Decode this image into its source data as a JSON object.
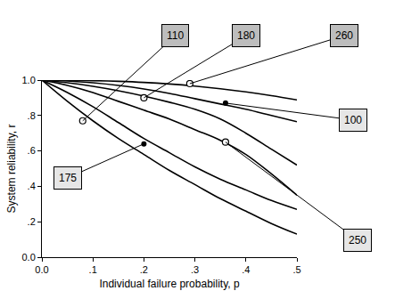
{
  "chart_data": {
    "type": "line",
    "x_label": "Individual failure probability, p",
    "y_label": "System reliability, r",
    "x": [
      0,
      0.05,
      0.1,
      0.15,
      0.2,
      0.25,
      0.3,
      0.35,
      0.4,
      0.45,
      0.5
    ],
    "series": [
      {
        "color": "#000000",
        "values": [
          1,
          0.999,
          0.997,
          0.993,
          0.987,
          0.978,
          0.966,
          0.951,
          0.933,
          0.912,
          0.888
        ]
      },
      {
        "color": "#000000",
        "values": [
          1,
          0.995,
          0.985,
          0.97,
          0.95,
          0.925,
          0.895,
          0.865,
          0.835,
          0.8,
          0.765
        ]
      },
      {
        "color": "#000000",
        "values": [
          1,
          0.985,
          0.965,
          0.94,
          0.91,
          0.875,
          0.835,
          0.78,
          0.7,
          0.61,
          0.52
        ]
      },
      {
        "color": "#000000",
        "values": [
          1,
          0.97,
          0.93,
          0.88,
          0.83,
          0.78,
          0.72,
          0.66,
          0.58,
          0.47,
          0.35
        ]
      },
      {
        "color": "#000000",
        "values": [
          1,
          0.93,
          0.85,
          0.76,
          0.67,
          0.59,
          0.51,
          0.44,
          0.38,
          0.32,
          0.27
        ]
      },
      {
        "color": "#000000",
        "values": [
          1,
          0.88,
          0.77,
          0.67,
          0.58,
          0.49,
          0.41,
          0.33,
          0.26,
          0.19,
          0.13
        ]
      }
    ],
    "points": [
      {
        "x": 0.08,
        "y": 0.77,
        "marker": "open",
        "label": "110"
      },
      {
        "x": 0.2,
        "y": 0.9,
        "marker": "open",
        "label": "180"
      },
      {
        "x": 0.29,
        "y": 0.98,
        "marker": "open",
        "label": "260"
      },
      {
        "x": 0.36,
        "y": 0.87,
        "marker": "filled",
        "label": "100"
      },
      {
        "x": 0.2,
        "y": 0.64,
        "marker": "filled",
        "label": "175"
      },
      {
        "x": 0.36,
        "y": 0.65,
        "marker": "open",
        "label": "250"
      }
    ],
    "xlim": [
      0,
      0.5
    ],
    "ylim": [
      0,
      1
    ],
    "xticks": [
      {
        "value": 0,
        "label": "0.0"
      },
      {
        "value": 0.1,
        "label": ".1"
      },
      {
        "value": 0.2,
        "label": ".2"
      },
      {
        "value": 0.3,
        "label": ".3"
      },
      {
        "value": 0.4,
        "label": ".4"
      },
      {
        "value": 0.5,
        "label": ".5"
      }
    ],
    "yticks": [
      {
        "value": 0,
        "label": "0.0"
      },
      {
        "value": 0.2,
        "label": ".2"
      },
      {
        "value": 0.4,
        "label": ".4"
      },
      {
        "value": 0.6,
        "label": ".6"
      },
      {
        "value": 0.8,
        "label": ".8"
      },
      {
        "value": 1,
        "label": "1.0"
      }
    ],
    "grid": false
  }
}
